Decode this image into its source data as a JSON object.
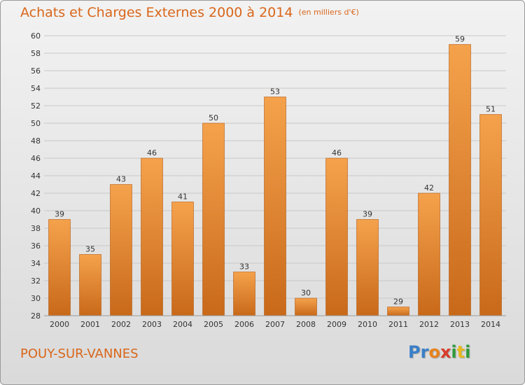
{
  "title": "Achats et Charges Externes 2000 à 2014",
  "unit": "(en milliers d'€)",
  "commune": "POUY-SUR-VANNES",
  "logo": {
    "letters": [
      {
        "ch": "P",
        "color": "#3a7fc8"
      },
      {
        "ch": "r",
        "color": "#3a7fc8"
      },
      {
        "ch": "o",
        "color": "#e8821e"
      },
      {
        "ch": "x",
        "color": "#d93c2a"
      },
      {
        "ch": "i",
        "color": "#2f9a3a"
      },
      {
        "ch": "t",
        "color": "#e8b81e"
      },
      {
        "ch": "i",
        "color": "#2f9a3a"
      }
    ]
  },
  "chart_data": {
    "type": "bar",
    "title": "Achats et Charges Externes 2000 à 2014",
    "subtitle": "(en milliers d'€)",
    "xlabel": "",
    "ylabel": "",
    "categories": [
      "2000",
      "2001",
      "2002",
      "2003",
      "2004",
      "2005",
      "2006",
      "2007",
      "2008",
      "2009",
      "2010",
      "2011",
      "2012",
      "2013",
      "2014"
    ],
    "values": [
      39,
      35,
      43,
      46,
      41,
      50,
      33,
      53,
      30,
      46,
      39,
      29,
      42,
      59,
      51
    ],
    "ylim": [
      28,
      60
    ],
    "yticks": [
      28,
      30,
      32,
      34,
      36,
      38,
      40,
      42,
      44,
      46,
      48,
      50,
      52,
      54,
      56,
      58,
      60
    ],
    "grid": true,
    "legend": "none",
    "colors": {
      "bar_top": "#f5a24c",
      "bar_bottom": "#c8691a",
      "grid": "#c8c8c8"
    }
  }
}
